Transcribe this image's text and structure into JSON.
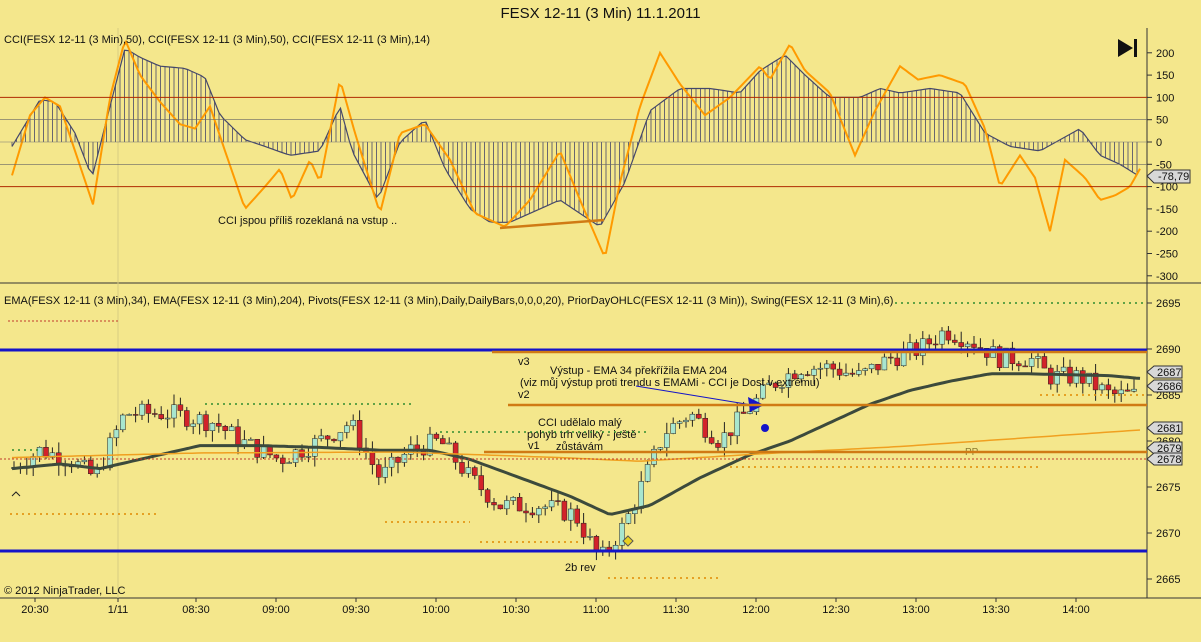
{
  "window": {
    "title": "FESX 12-11 (3 Min)  11.1.2011",
    "frame_button": "F",
    "copyright": "© 2012 NinjaTrader, LLC"
  },
  "cci_panel": {
    "legend": "CCI(FESX 12-11 (3 Min),50), CCI(FESX 12-11 (3 Min),50), CCI(FESX 12-11 (3 Min),14)",
    "y_ticks": [
      "200",
      "150",
      "100",
      "50",
      "0",
      "-50",
      "-100",
      "-150",
      "-200",
      "-250",
      "-300"
    ],
    "current_value": "-78,79",
    "annotation": "CCI jspou příliš rozeklaná na vstup ..",
    "colors": {
      "histogram": "#44476a",
      "line14": "#ff9a00",
      "level100": "#b02a00",
      "level50": "#666666"
    }
  },
  "price_panel": {
    "legend": "EMA(FESX 12-11 (3 Min),34), EMA(FESX 12-11 (3 Min),204), Pivots(FESX 12-11 (3 Min),Daily,DailyBars,0,0,0,20), PriorDayOHLC(FESX 12-11 (3 Min)), Swing(FESX 12-11 (3 Min),6)",
    "y_ticks": [
      "2695",
      "2690",
      "2685",
      "2680",
      "2675",
      "2670",
      "2665"
    ],
    "price_tags": [
      "2687",
      "2686",
      "2681",
      "2679",
      "2678"
    ],
    "annotations": {
      "v3": "v3",
      "v2": "v2",
      "v1": "v1",
      "exit_line1": "Výstup - EMA 34 překřížila EMA 204",
      "exit_line2": "(viz můj výstup proti trendu s EMAMi - CCI je Dost v extrému)",
      "cci_line1": "CCI udělalo malý",
      "cci_line2": "pohyb trh veliký - ještě",
      "cci_line3": "zůstávám",
      "pp": "PP",
      "rev": "2b rev"
    },
    "colors": {
      "bull": "#a8e6cf",
      "bear": "#d2232a",
      "ema34": "#3c4a3c",
      "ema204": "#f0a020",
      "pivot": "#1414c8",
      "swing": "#d07a14"
    }
  },
  "time_axis": {
    "labels": [
      "20:30",
      "1/11",
      "08:30",
      "09:00",
      "09:30",
      "10:00",
      "10:30",
      "11:00",
      "11:30",
      "12:00",
      "12:30",
      "13:00",
      "13:30",
      "14:00"
    ]
  }
}
